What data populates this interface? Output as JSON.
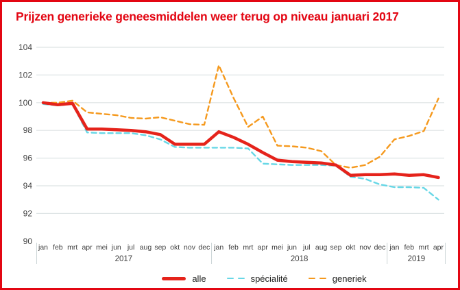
{
  "title": "Prijzen generieke geneesmiddelen weer terug op niveau januari 2017",
  "colors": {
    "accent_red": "#e30613",
    "series_alle": "#e5231b",
    "series_specialite": "#67d7e6",
    "series_generiek": "#f5991d",
    "gridline": "#dde3e4",
    "separator": "#ccd5d7",
    "axis_text": "#3f3f3f"
  },
  "chart_data": {
    "type": "line",
    "title": "Prijzen generieke geneesmiddelen weer terug op niveau januari 2017",
    "xlabel": "",
    "ylabel": "",
    "ylim": [
      90,
      104
    ],
    "yticks": [
      90,
      92,
      94,
      96,
      98,
      100,
      102,
      104
    ],
    "grid": "horizontal",
    "legend_position": "bottom-center",
    "year_groups": [
      {
        "year": "2017",
        "months": [
          "jan",
          "feb",
          "mrt",
          "apr",
          "mei",
          "jun",
          "jul",
          "aug",
          "sep",
          "okt",
          "nov",
          "dec"
        ]
      },
      {
        "year": "2018",
        "months": [
          "jan",
          "feb",
          "mrt",
          "apr",
          "mei",
          "jun",
          "jul",
          "aug",
          "sep",
          "okt",
          "nov",
          "dec"
        ]
      },
      {
        "year": "2019",
        "months": [
          "jan",
          "feb",
          "mrt",
          "apr"
        ]
      }
    ],
    "series": [
      {
        "name": "alle",
        "color": "#e5231b",
        "line_style": "solid",
        "width": 4.5,
        "z": 3,
        "values": [
          100,
          99.85,
          99.95,
          98.1,
          98.1,
          98.05,
          98,
          97.9,
          97.7,
          97,
          97,
          97,
          97.9,
          97.5,
          97,
          96.4,
          95.85,
          95.75,
          95.7,
          95.65,
          95.5,
          94.75,
          94.8,
          94.8,
          94.85,
          94.75,
          94.8,
          94.6
        ]
      },
      {
        "name": "spécialité",
        "color": "#67d7e6",
        "line_style": "dashed",
        "width": 2.4,
        "z": 1,
        "values": [
          99.9,
          99.8,
          99.9,
          97.85,
          97.8,
          97.8,
          97.8,
          97.65,
          97.35,
          96.8,
          96.75,
          96.75,
          96.75,
          96.75,
          96.7,
          95.6,
          95.55,
          95.5,
          95.5,
          95.5,
          95.45,
          94.65,
          94.5,
          94.1,
          93.9,
          93.9,
          93.85,
          93
        ]
      },
      {
        "name": "generiek",
        "color": "#f5991d",
        "line_style": "dashed",
        "width": 2.4,
        "z": 2,
        "values": [
          100,
          100,
          100.15,
          99.3,
          99.2,
          99.1,
          98.9,
          98.85,
          98.95,
          98.7,
          98.45,
          98.4,
          102.7,
          100.35,
          98.25,
          99,
          96.9,
          96.85,
          96.75,
          96.5,
          95.5,
          95.3,
          95.5,
          96.1,
          97.35,
          97.6,
          97.95,
          100.3
        ]
      }
    ]
  }
}
